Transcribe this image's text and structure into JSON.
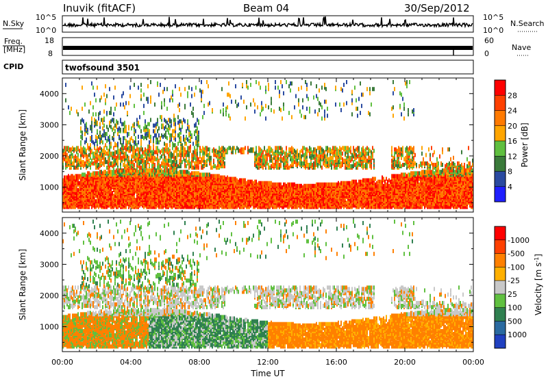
{
  "header": {
    "station": "Inuvik (fitACF)",
    "beam": "Beam 04",
    "date": "30/Sep/2012"
  },
  "top_panels": {
    "nsky_label": "N.Sky",
    "nsearch_label": "N.Search",
    "noise_left_ticks": [
      "10^5",
      "10^0"
    ],
    "noise_right_ticks": [
      "10^5",
      "10^0"
    ],
    "freq_label_line1": "Freq.",
    "freq_label_line2": "[MHz]",
    "freq_ticks": [
      "18",
      "8"
    ],
    "nave_label": "Nave",
    "nave_ticks": [
      "60",
      "0"
    ],
    "cpid_label": "CPID",
    "cpid_value": "twofsound 3501"
  },
  "chart_data": [
    {
      "type": "heatmap",
      "title": "",
      "xlabel": "",
      "ylabel": "Slant Range [km]",
      "x_ticks": [
        "00:00",
        "04:00",
        "08:00",
        "12:00",
        "16:00",
        "20:00",
        "00:00"
      ],
      "y_ticks": [
        1000,
        2000,
        3000,
        4000
      ],
      "ylim": [
        200,
        4500
      ],
      "xlim_hours": [
        0,
        24
      ],
      "colorbar": {
        "label": "Power [dB]",
        "ticks": [
          "4",
          "8",
          "12",
          "16",
          "20",
          "24",
          "28"
        ],
        "colors": [
          "#1f1fff",
          "#2a4aa0",
          "#3a7a3a",
          "#5fbf3f",
          "#ffa500",
          "#ff7a00",
          "#ff4000",
          "#ff0000"
        ]
      },
      "dominant_band_km": [
        400,
        1400
      ],
      "secondary_band_km": [
        1600,
        2400
      ]
    },
    {
      "type": "heatmap",
      "title": "",
      "xlabel": "Time UT",
      "ylabel": "Slant Range [km]",
      "x_ticks": [
        "00:00",
        "04:00",
        "08:00",
        "12:00",
        "16:00",
        "20:00",
        "00:00"
      ],
      "y_ticks": [
        1000,
        2000,
        3000,
        4000
      ],
      "ylim": [
        200,
        4500
      ],
      "xlim_hours": [
        0,
        24
      ],
      "colorbar": {
        "label": "Velocity [m s^-1]",
        "ticks": [
          "1000",
          "500",
          "100",
          "25",
          "-25",
          "-100",
          "-500",
          "-1000"
        ],
        "colors": [
          "#2040c0",
          "#2a6aa0",
          "#2f8050",
          "#60c040",
          "#c8c8c8",
          "#ffb000",
          "#ff8000",
          "#ff4000",
          "#ff0000"
        ]
      }
    }
  ]
}
